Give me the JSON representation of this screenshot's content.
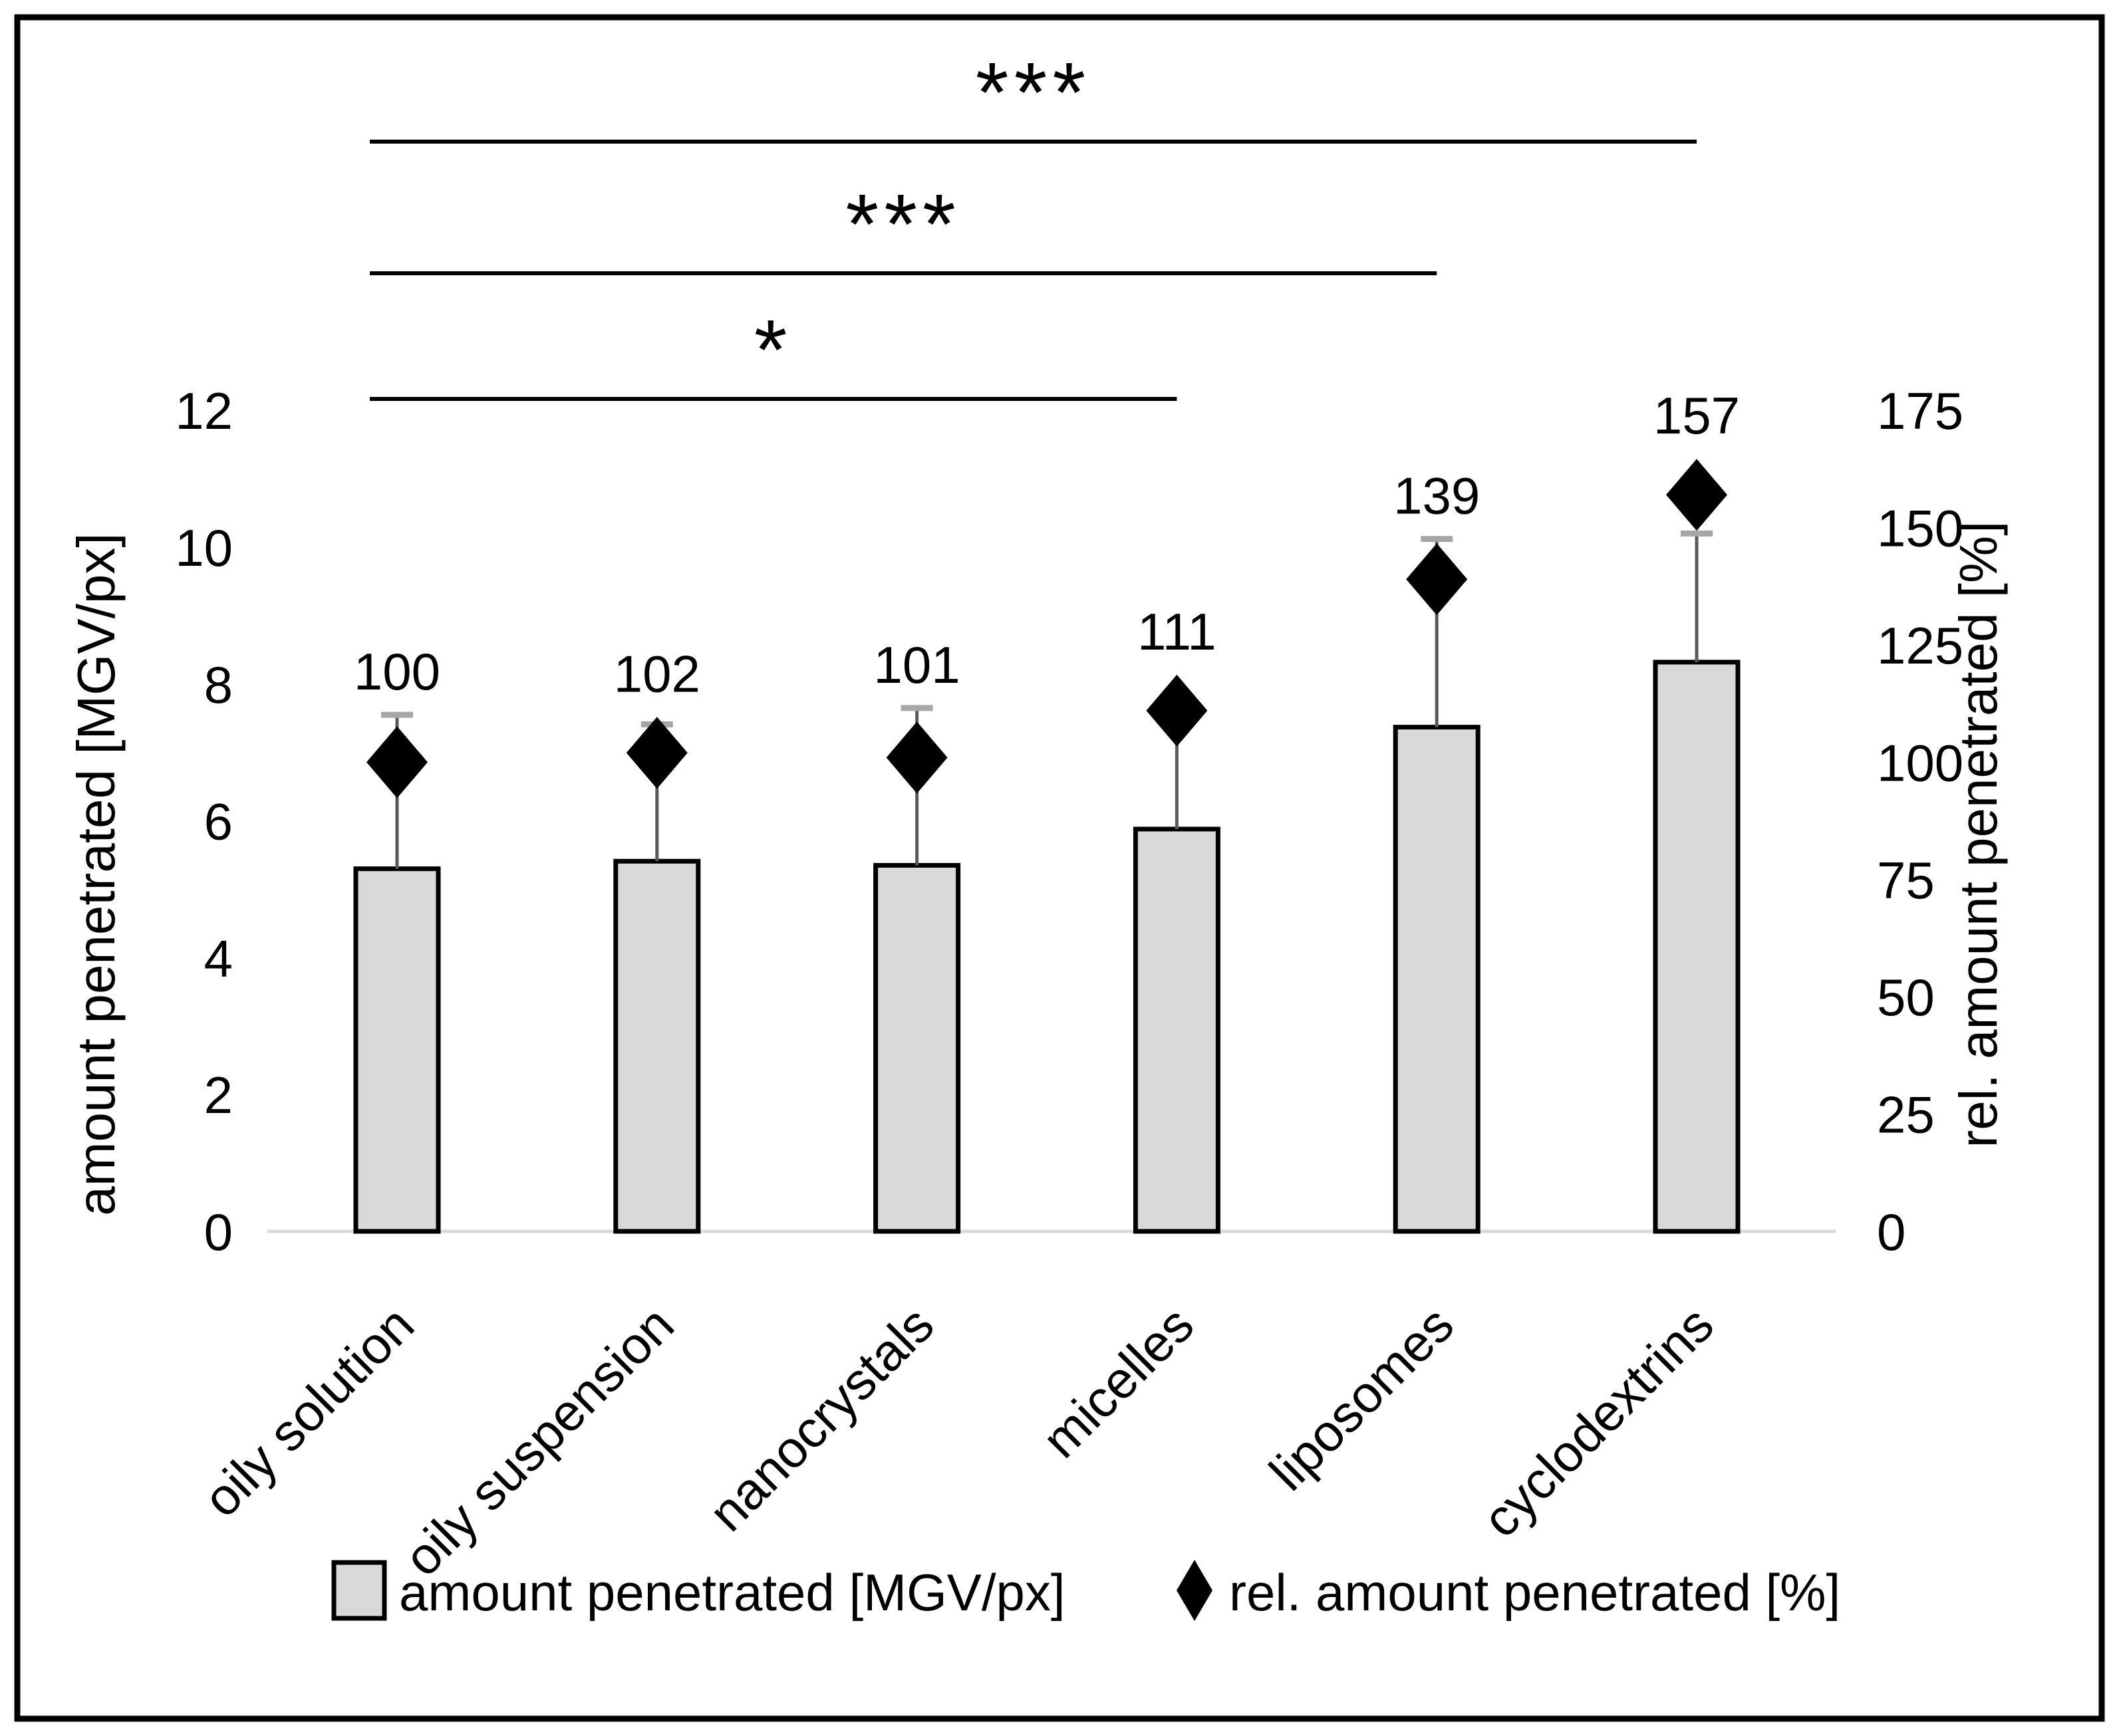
{
  "figure": {
    "background": "#ffffff",
    "frame_color": "#000000"
  },
  "chart_data": {
    "type": "bar",
    "subtype": "dual-axis-bar-with-scatter-diamonds",
    "categories": [
      "oily solution",
      "oily suspension",
      "nanocrystals",
      "micelles",
      "liposomes",
      "cyclodextrins"
    ],
    "series": [
      {
        "name": "amount penetrated [MGV/px]",
        "type": "bar",
        "axis": "left",
        "values": [
          5.3,
          5.41,
          5.35,
          5.88,
          7.37,
          8.32
        ],
        "errors_plus": [
          2.25,
          2.0,
          2.3,
          1.7,
          2.75,
          1.88
        ]
      },
      {
        "name": "rel. amount penetrated [%]",
        "type": "scatter",
        "marker": "diamond",
        "axis": "right",
        "values": [
          100,
          102,
          101,
          111,
          139,
          157
        ],
        "data_labels": [
          "100",
          "102",
          "101",
          "111",
          "139",
          "157"
        ]
      }
    ],
    "left_axis": {
      "label": "amount penetrated  [MGV/px]",
      "ticks": [
        0,
        2,
        4,
        6,
        8,
        10,
        12
      ],
      "range": [
        0,
        12
      ]
    },
    "right_axis": {
      "label": "rel. amount penetrated [%]",
      "ticks": [
        0,
        25,
        50,
        75,
        100,
        125,
        150,
        175
      ],
      "range": [
        0,
        175
      ]
    },
    "significance": [
      {
        "label": "*",
        "from": 0,
        "to": 3
      },
      {
        "label": "***",
        "from": 0,
        "to": 4
      },
      {
        "label": "***",
        "from": 0,
        "to": 5
      }
    ],
    "legend": [
      {
        "marker": "square",
        "label": "amount penetrated [MGV/px]"
      },
      {
        "marker": "diamond",
        "label": "rel. amount penetrated [%]"
      }
    ],
    "grid": false,
    "legend_position": "bottom",
    "colors": {
      "bar_fill": "#d9d9d9",
      "bar_stroke": "#000000",
      "error_line": "#595959",
      "error_cap": "#a6a6a6",
      "diamond": "#000000",
      "axis_line": "#d9d9d9",
      "sig_line": "#000000",
      "text": "#000000"
    }
  }
}
